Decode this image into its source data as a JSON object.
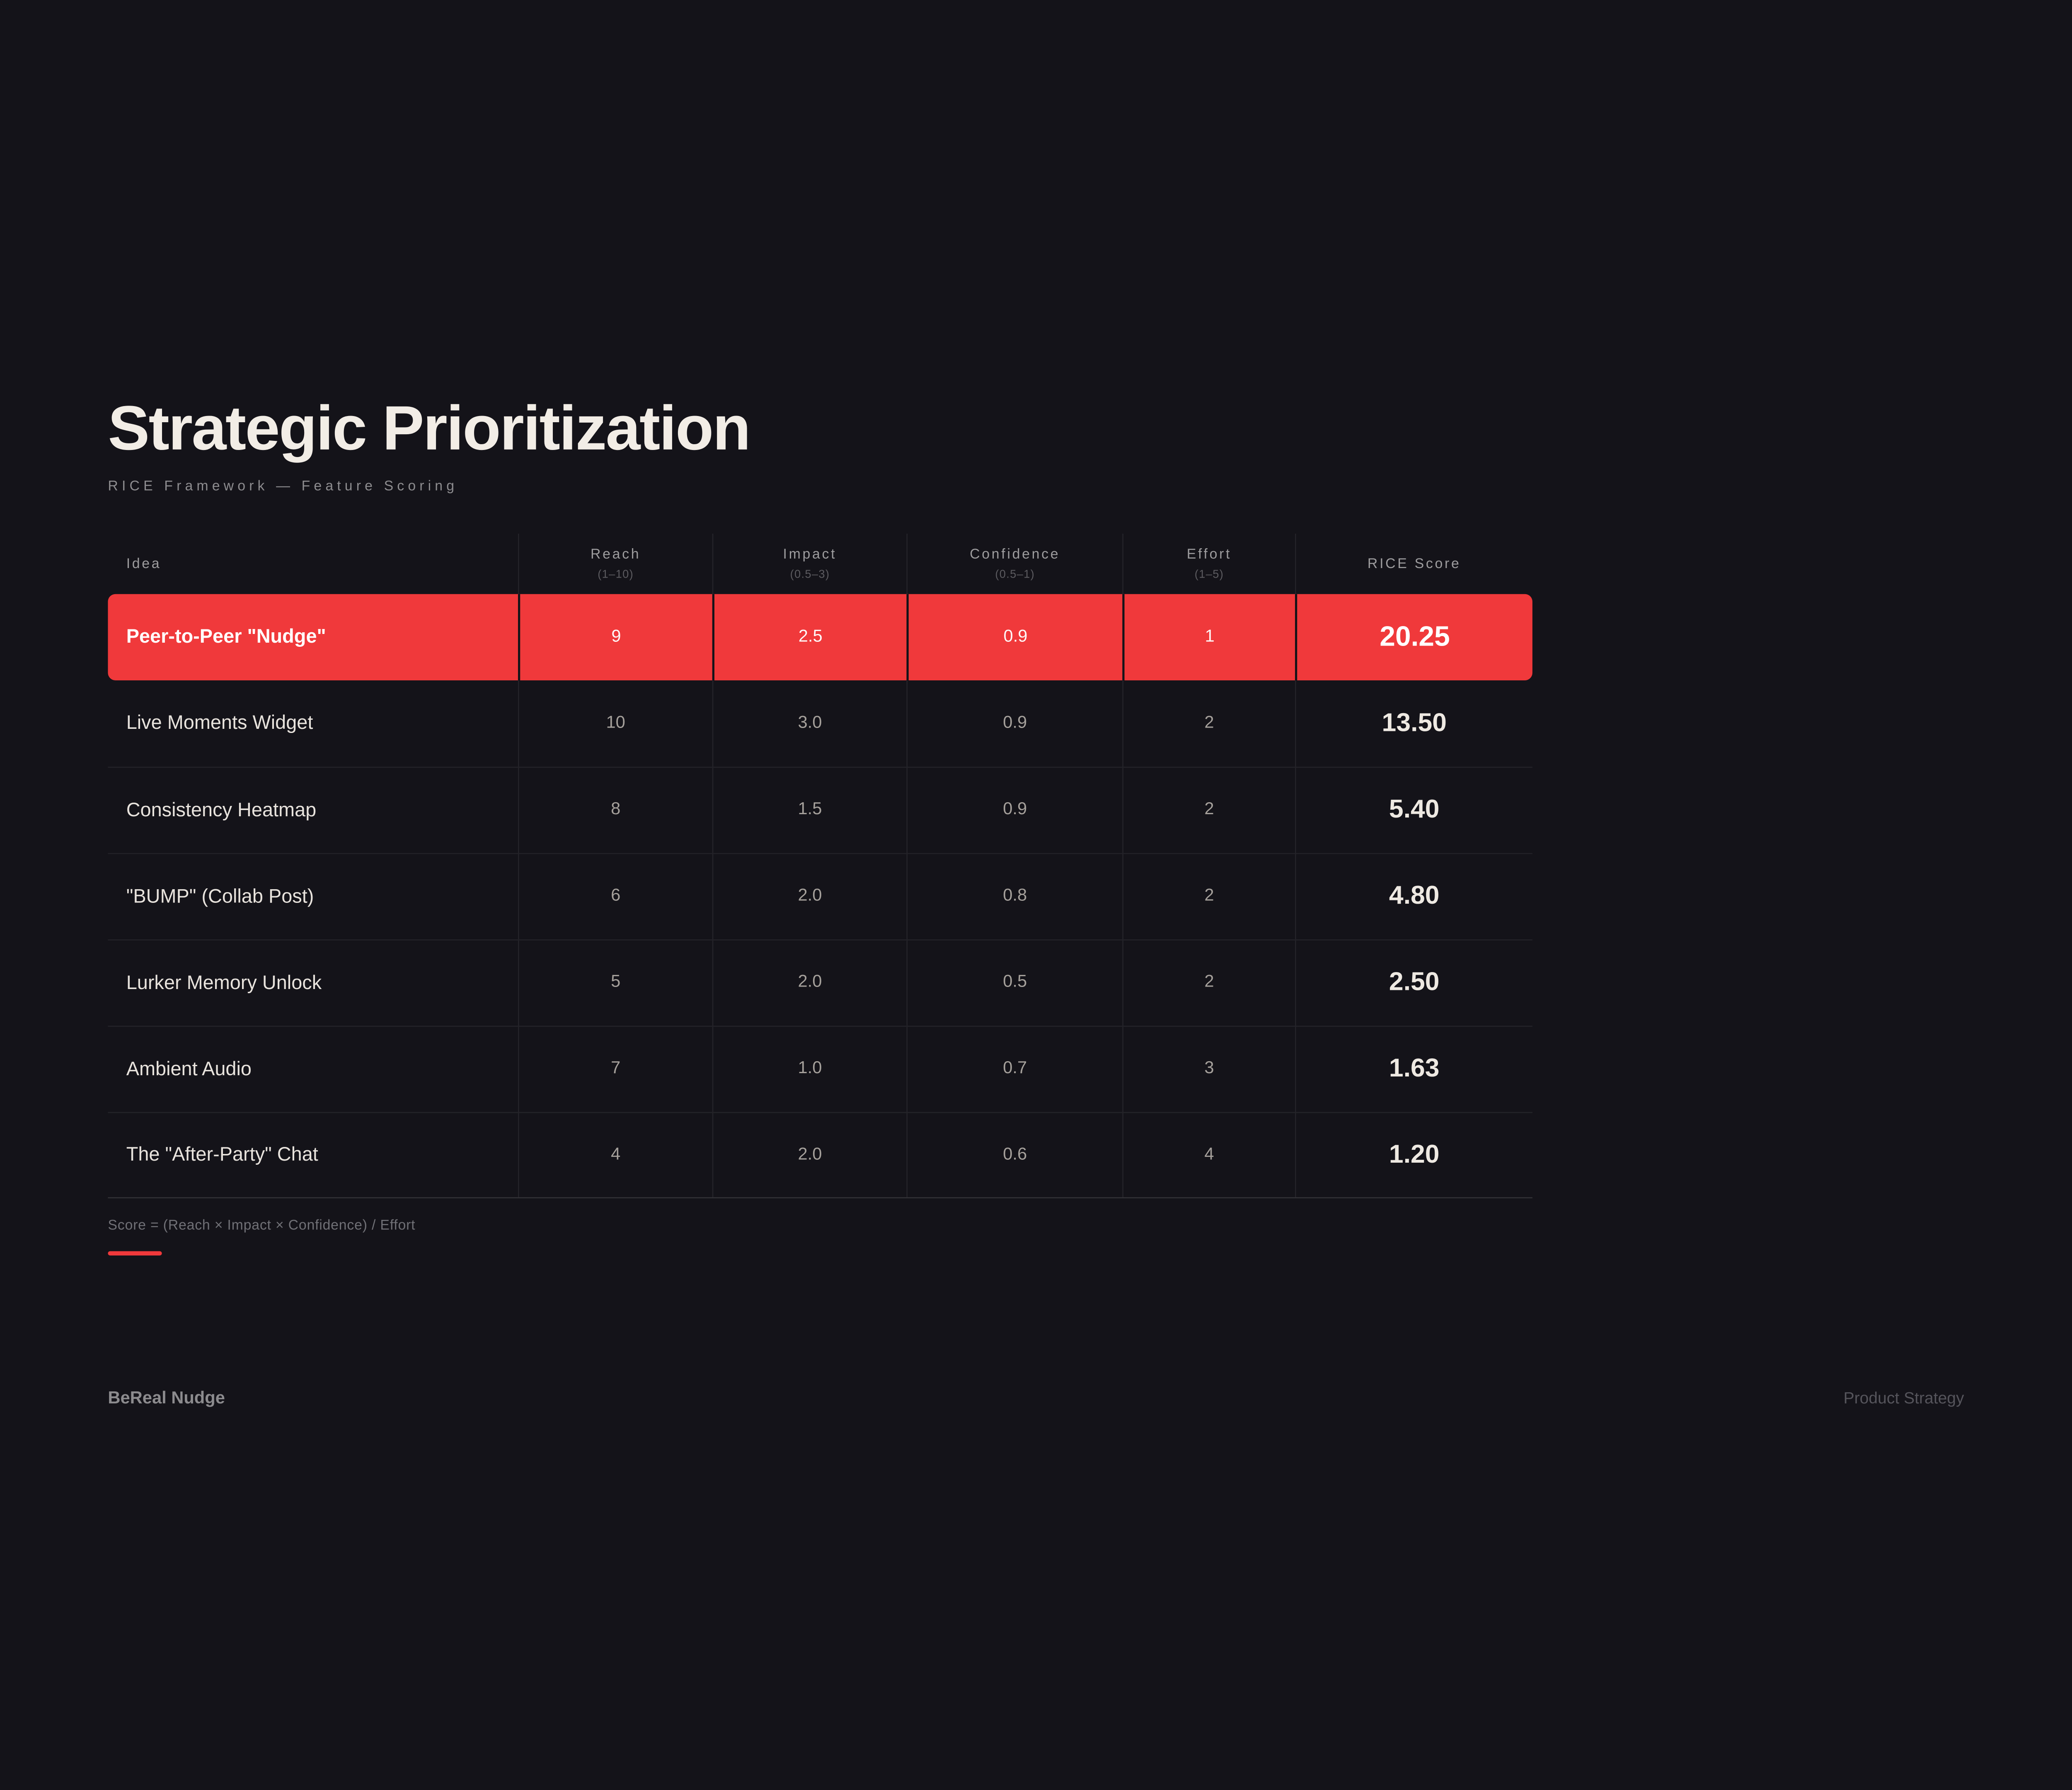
{
  "title": "Strategic Prioritization",
  "subtitle": "RICE Framework — Feature Scoring",
  "table": {
    "columns": [
      {
        "label": "Idea",
        "range": ""
      },
      {
        "label": "Reach",
        "range": "(1–10)"
      },
      {
        "label": "Impact",
        "range": "(0.5–3)"
      },
      {
        "label": "Confidence",
        "range": "(0.5–1)"
      },
      {
        "label": "Effort",
        "range": "(1–5)"
      },
      {
        "label": "RICE Score",
        "range": ""
      }
    ],
    "rows": [
      {
        "idea": "Peer-to-Peer \"Nudge\"",
        "reach": "9",
        "impact": "2.5",
        "confidence": "0.9",
        "effort": "1",
        "score": "20.25",
        "highlighted": true
      },
      {
        "idea": "Live Moments Widget",
        "reach": "10",
        "impact": "3.0",
        "confidence": "0.9",
        "effort": "2",
        "score": "13.50",
        "highlighted": false
      },
      {
        "idea": "Consistency Heatmap",
        "reach": "8",
        "impact": "1.5",
        "confidence": "0.9",
        "effort": "2",
        "score": "5.40",
        "highlighted": false
      },
      {
        "idea": "\"BUMP\" (Collab Post)",
        "reach": "6",
        "impact": "2.0",
        "confidence": "0.8",
        "effort": "2",
        "score": "4.80",
        "highlighted": false
      },
      {
        "idea": "Lurker Memory Unlock",
        "reach": "5",
        "impact": "2.0",
        "confidence": "0.5",
        "effort": "2",
        "score": "2.50",
        "highlighted": false
      },
      {
        "idea": "Ambient Audio",
        "reach": "7",
        "impact": "1.0",
        "confidence": "0.7",
        "effort": "3",
        "score": "1.63",
        "highlighted": false
      },
      {
        "idea": "The \"After-Party\" Chat",
        "reach": "4",
        "impact": "2.0",
        "confidence": "0.6",
        "effort": "4",
        "score": "1.20",
        "highlighted": false
      }
    ]
  },
  "footnote": "Score = (Reach × Impact × Confidence) / Effort",
  "footer": {
    "brand": "BeReal Nudge",
    "tag": "Product Strategy"
  },
  "colors": {
    "background": "#141319",
    "accent_red": "#F0393B",
    "title_text": "#F2EDE6"
  }
}
